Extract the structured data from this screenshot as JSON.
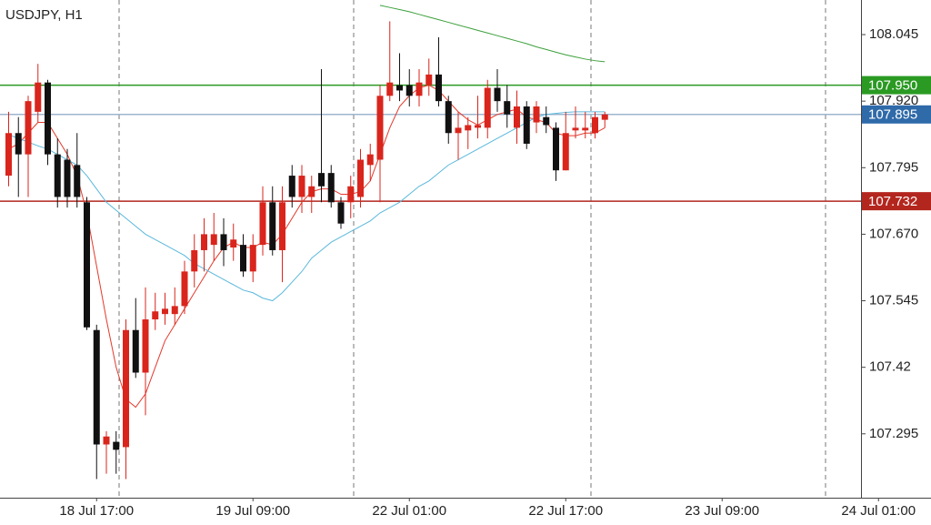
{
  "chart_data": {
    "type": "candlestick",
    "title": "USDJPY, H1",
    "categories": [
      null,
      null,
      null,
      null,
      null,
      null,
      null,
      null,
      null,
      "18 Jul 17:00",
      null,
      null,
      null,
      null,
      null,
      null,
      null,
      null,
      null,
      null,
      null,
      null,
      null,
      null,
      null,
      "19 Jul 09:00",
      null,
      null,
      null,
      null,
      null,
      null,
      null,
      null,
      null,
      null,
      null,
      null,
      null,
      null,
      null,
      "22 Jul 01:00",
      null,
      null,
      null,
      null,
      null,
      null,
      null,
      null,
      null,
      null,
      null,
      null,
      null,
      null,
      null,
      "22 Jul 17:00",
      null,
      null,
      null,
      null,
      null,
      null,
      null,
      null,
      null,
      null,
      null,
      null,
      null,
      null,
      null,
      "23 Jul 09:00",
      null,
      null,
      null,
      null,
      null,
      null,
      null,
      null,
      null,
      null,
      null,
      null,
      null,
      null,
      null,
      "24 Jul 01:00"
    ],
    "open": [
      107.78,
      107.86,
      107.82,
      107.9,
      107.955,
      107.82,
      107.81,
      107.8,
      107.73,
      107.49,
      107.275,
      107.28,
      107.27,
      107.49,
      107.41,
      107.51,
      107.52,
      107.52,
      107.535,
      107.6,
      107.64,
      107.65,
      107.67,
      107.645,
      107.65,
      107.6,
      107.65,
      107.73,
      107.64,
      107.78,
      107.74,
      107.74,
      107.785,
      107.785,
      107.73,
      107.73,
      107.74,
      107.8,
      107.81,
      107.93,
      107.95,
      107.95,
      107.93,
      107.95,
      107.97,
      107.92,
      107.86,
      107.865,
      107.87,
      107.87,
      107.945,
      107.92,
      107.87,
      107.91,
      107.88,
      107.89,
      107.87,
      107.79,
      107.865,
      107.865,
      107.86,
      107.885,
      null,
      null,
      null,
      null,
      null,
      null,
      null,
      null,
      null,
      null,
      null,
      null,
      null,
      null,
      null,
      null,
      null,
      null,
      null,
      null,
      null,
      null,
      null,
      null,
      null,
      null,
      null,
      null
    ],
    "high": [
      107.9,
      107.89,
      107.93,
      107.99,
      107.96,
      107.85,
      107.83,
      107.86,
      107.74,
      107.5,
      107.3,
      107.3,
      107.51,
      107.55,
      107.57,
      107.56,
      107.56,
      107.57,
      107.62,
      107.67,
      107.7,
      107.71,
      107.7,
      107.69,
      107.67,
      107.67,
      107.76,
      107.76,
      107.76,
      107.8,
      107.8,
      107.78,
      107.98,
      107.8,
      107.74,
      107.78,
      107.83,
      107.84,
      107.95,
      108.07,
      108.01,
      107.98,
      107.98,
      108.0,
      108.04,
      107.93,
      107.9,
      107.89,
      107.93,
      107.96,
      107.98,
      107.95,
      107.94,
      107.92,
      107.92,
      107.91,
      107.88,
      107.9,
      107.91,
      107.9,
      107.9,
      107.9,
      null,
      null,
      null,
      null,
      null,
      null,
      null,
      null,
      null,
      null,
      null,
      null,
      null,
      null,
      null,
      null,
      null,
      null,
      null,
      null,
      null,
      null,
      null,
      null,
      null,
      null,
      null,
      null
    ],
    "low": [
      107.76,
      107.74,
      107.74,
      107.88,
      107.8,
      107.72,
      107.72,
      107.72,
      107.49,
      107.21,
      107.22,
      107.22,
      107.21,
      107.4,
      107.33,
      107.49,
      107.5,
      107.5,
      107.52,
      107.57,
      107.6,
      107.62,
      107.61,
      107.62,
      107.59,
      107.58,
      107.63,
      107.63,
      107.58,
      107.72,
      107.71,
      107.71,
      107.73,
      107.72,
      107.68,
      107.7,
      107.72,
      107.77,
      107.73,
      107.92,
      107.92,
      107.91,
      107.91,
      107.93,
      107.91,
      107.84,
      107.81,
      107.83,
      107.85,
      107.85,
      107.9,
      107.87,
      107.84,
      107.83,
      107.86,
      107.86,
      107.77,
      107.79,
      107.85,
      107.85,
      107.85,
      107.87,
      null,
      null,
      null,
      null,
      null,
      null,
      null,
      null,
      null,
      null,
      null,
      null,
      null,
      null,
      null,
      null,
      null,
      null,
      null,
      null,
      null,
      null,
      null,
      null,
      null,
      null,
      null,
      null
    ],
    "close": [
      107.86,
      107.82,
      107.92,
      107.955,
      107.82,
      107.74,
      107.74,
      107.74,
      107.495,
      107.275,
      107.29,
      107.265,
      107.49,
      107.41,
      107.51,
      107.525,
      107.53,
      107.535,
      107.6,
      107.64,
      107.67,
      107.67,
      107.64,
      107.66,
      107.6,
      107.65,
      107.73,
      107.64,
      107.73,
      107.74,
      107.78,
      107.76,
      107.76,
      107.73,
      107.69,
      107.76,
      107.81,
      107.82,
      107.93,
      107.955,
      107.94,
      107.93,
      107.955,
      107.97,
      107.92,
      107.86,
      107.87,
      107.875,
      107.875,
      107.945,
      107.92,
      107.895,
      107.91,
      107.84,
      107.91,
      107.875,
      107.79,
      107.86,
      107.87,
      107.87,
      107.89,
      107.895,
      null,
      null,
      null,
      null,
      null,
      null,
      null,
      null,
      null,
      null,
      null,
      null,
      null,
      null,
      null,
      null,
      null,
      null,
      null,
      null,
      null,
      null,
      null,
      null,
      null,
      null,
      null,
      null
    ],
    "bull_color": "#d9251c",
    "bear_color": "#111111",
    "series": [
      {
        "color": "#e3392b",
        "values": [
          107.83,
          107.84,
          107.86,
          107.88,
          107.88,
          107.85,
          107.82,
          107.78,
          107.71,
          107.61,
          107.51,
          107.42,
          107.36,
          107.345,
          107.37,
          107.42,
          107.47,
          107.5,
          107.53,
          107.56,
          107.59,
          107.62,
          107.645,
          107.655,
          107.645,
          107.645,
          107.655,
          107.65,
          107.67,
          107.7,
          107.73,
          107.75,
          107.755,
          107.755,
          107.745,
          107.745,
          107.75,
          107.77,
          107.82,
          107.87,
          107.91,
          107.93,
          107.945,
          107.95,
          107.94,
          107.92,
          107.9,
          107.885,
          107.875,
          107.885,
          107.895,
          107.9,
          107.905,
          107.89,
          107.885,
          107.88,
          107.86,
          107.855,
          107.855,
          107.86,
          107.86,
          107.87,
          null,
          null,
          null,
          null,
          null,
          null,
          null,
          null,
          null,
          null,
          null,
          null,
          null,
          null,
          null,
          null,
          null,
          null,
          null,
          null,
          null,
          null,
          null,
          null,
          null,
          null,
          null,
          null
        ]
      },
      {
        "color": "#5ab8dc",
        "values": [
          107.857,
          107.85,
          107.843,
          107.836,
          107.83,
          107.82,
          107.81,
          107.8,
          107.78,
          107.755,
          107.73,
          107.715,
          107.7,
          107.685,
          107.67,
          107.66,
          107.65,
          107.64,
          107.63,
          107.615,
          107.605,
          107.595,
          107.585,
          107.575,
          107.565,
          107.56,
          107.55,
          107.545,
          107.56,
          107.58,
          107.6,
          107.625,
          107.64,
          107.655,
          107.665,
          107.675,
          107.685,
          107.695,
          107.71,
          107.72,
          107.73,
          107.745,
          107.76,
          107.77,
          107.785,
          107.8,
          107.81,
          107.82,
          107.83,
          107.84,
          107.85,
          107.86,
          107.87,
          107.88,
          107.89,
          107.895,
          107.897,
          107.899,
          107.9,
          107.9,
          107.9,
          107.9,
          null,
          null,
          null,
          null,
          null,
          null,
          null,
          null,
          null,
          null,
          null,
          null,
          null,
          null,
          null,
          null,
          null,
          null,
          null,
          null,
          null,
          null,
          null,
          null,
          null,
          null,
          null,
          null
        ]
      },
      {
        "color": "#3ca03c",
        "values": [
          null,
          null,
          null,
          null,
          null,
          null,
          null,
          null,
          null,
          null,
          null,
          null,
          null,
          null,
          null,
          null,
          null,
          null,
          null,
          null,
          null,
          null,
          null,
          null,
          null,
          null,
          null,
          null,
          null,
          null,
          null,
          null,
          null,
          null,
          null,
          null,
          null,
          null,
          108.1,
          108.096,
          108.092,
          108.088,
          108.083,
          108.078,
          108.073,
          108.068,
          108.063,
          108.058,
          108.053,
          108.048,
          108.043,
          108.038,
          108.033,
          108.028,
          108.022,
          108.017,
          108.012,
          108.007,
          108.003,
          107.999,
          107.996,
          107.994,
          null,
          null,
          null,
          null,
          null,
          null,
          null,
          null,
          null,
          null,
          null,
          null,
          null,
          null,
          null,
          null,
          null,
          null,
          null,
          null,
          null,
          null,
          null,
          null,
          null,
          null,
          null,
          null
        ]
      }
    ],
    "hlines": [
      {
        "value": {
          "value": 107.95,
          "label": "107.950"
        },
        "color": "#2a9a22"
      },
      {
        "value": 107.895,
        "color": "#2f6aa9",
        "line_color": "#9db6cf"
      },
      {
        "value": 107.732,
        "color": "#b3261e"
      }
    ],
    "ylim": [
      107.175,
      108.11
    ],
    "yticks": [
      108.045,
      {
        "value": 107.92,
        "label": "107.920"
      },
      107.795,
      {
        "value": 107.67,
        "label": "107.670"
      },
      107.545,
      107.42,
      107.295
    ],
    "grid": false
  }
}
